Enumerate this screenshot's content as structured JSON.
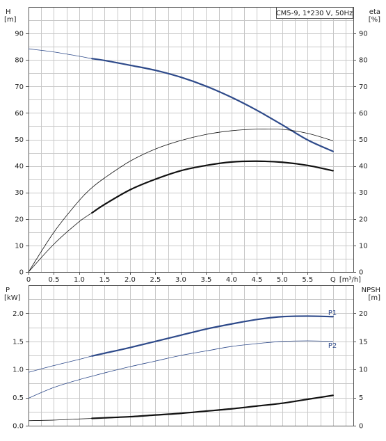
{
  "chart_data": [
    {
      "type": "line",
      "title": "CM5-9, 1*230 V, 50Hz",
      "xlabel": "Q [m³/h]",
      "x_axis_label": "Q",
      "x_axis_unit": "[m³/h]",
      "y_left_label": "H",
      "y_left_unit": "[m]",
      "y_right_label": "eta",
      "y_right_unit": "[%]",
      "xlim": [
        0,
        6.4
      ],
      "ylim": [
        0,
        100
      ],
      "y_right_lim": [
        0,
        100
      ],
      "x_ticks": [
        "0",
        "0.5",
        "1.0",
        "1.5",
        "2.0",
        "2.5",
        "3.0",
        "3.5",
        "4.0",
        "4.5",
        "5.0",
        "5.5"
      ],
      "y_ticks": [
        "0",
        "10",
        "20",
        "30",
        "40",
        "50",
        "60",
        "70",
        "80",
        "90"
      ],
      "y_right_ticks": [
        "0",
        "10",
        "20",
        "30",
        "40",
        "50",
        "60",
        "70",
        "80",
        "90"
      ],
      "grid": true,
      "series": [
        {
          "axis": "left",
          "color": "#2e4a8a",
          "x": [
            0,
            0.5,
            1.0,
            1.25,
            1.5,
            2.0,
            2.5,
            3.0,
            3.5,
            4.0,
            4.5,
            5.0,
            5.5,
            6.0
          ],
          "y": [
            84.2,
            83.0,
            81.4,
            80.5,
            79.8,
            78.0,
            76.1,
            73.5,
            70.1,
            65.9,
            61.0,
            55.5,
            49.8,
            45.5
          ],
          "emphasis_from_x": 1.25
        },
        {
          "axis": "right",
          "color": "#111111",
          "x": [
            0,
            0.5,
            1.0,
            1.25,
            1.5,
            2.0,
            2.5,
            3.0,
            3.5,
            4.0,
            4.5,
            5.0,
            5.5,
            6.0
          ],
          "y": [
            0,
            10.5,
            19.0,
            22.3,
            25.5,
            31.0,
            35.0,
            38.2,
            40.2,
            41.5,
            41.8,
            41.4,
            40.2,
            38.2
          ],
          "emphasis_from_x": 1.25
        },
        {
          "axis": "right",
          "color": "#111111",
          "x": [
            0,
            0.5,
            1.0,
            1.25,
            1.5,
            2.0,
            2.5,
            3.0,
            3.5,
            4.0,
            4.5,
            5.0,
            5.5,
            6.0
          ],
          "y": [
            0,
            15.0,
            27.0,
            31.8,
            35.5,
            41.8,
            46.4,
            49.6,
            51.9,
            53.3,
            53.9,
            53.8,
            52.3,
            49.5
          ],
          "emphasis_from_x": null
        }
      ]
    },
    {
      "type": "line",
      "xlabel": "",
      "y_left_label": "P",
      "y_left_unit": "[kW]",
      "y_right_label": "NPSH",
      "y_right_unit": "[m]",
      "xlim": [
        0,
        6.4
      ],
      "ylim": [
        0,
        2.5
      ],
      "y_right_lim": [
        0,
        25
      ],
      "y_ticks": [
        "0.0",
        "0.5",
        "1.0",
        "1.5",
        "2.0"
      ],
      "y_right_ticks": [
        "0",
        "5",
        "10",
        "15",
        "20"
      ],
      "grid": true,
      "series": [
        {
          "name": "P1",
          "axis": "left",
          "color": "#2e4a8a",
          "x": [
            0,
            0.5,
            1.0,
            1.25,
            1.5,
            2.0,
            2.5,
            3.0,
            3.5,
            4.0,
            4.5,
            5.0,
            5.5,
            6.0
          ],
          "y": [
            0.95,
            1.07,
            1.18,
            1.24,
            1.29,
            1.39,
            1.5,
            1.61,
            1.72,
            1.81,
            1.89,
            1.94,
            1.95,
            1.94
          ],
          "emphasis_from_x": 1.25
        },
        {
          "name": "P2",
          "axis": "left",
          "color": "#2e4a8a",
          "x": [
            0,
            0.5,
            1.0,
            1.25,
            1.5,
            2.0,
            2.5,
            3.0,
            3.5,
            4.0,
            4.5,
            5.0,
            5.5,
            6.0
          ],
          "y": [
            0.49,
            0.68,
            0.82,
            0.88,
            0.94,
            1.05,
            1.15,
            1.25,
            1.33,
            1.41,
            1.46,
            1.5,
            1.51,
            1.5
          ],
          "emphasis_from_x": null
        },
        {
          "axis": "right",
          "color": "#111111",
          "x": [
            0,
            0.5,
            1.0,
            1.25,
            1.5,
            2.0,
            2.5,
            3.0,
            3.5,
            4.0,
            4.5,
            5.0,
            5.5,
            6.0
          ],
          "y": [
            0.9,
            1.0,
            1.2,
            1.3,
            1.4,
            1.6,
            1.9,
            2.2,
            2.6,
            3.0,
            3.5,
            4.0,
            4.7,
            5.4
          ],
          "emphasis_from_x": 1.25
        }
      ]
    }
  ]
}
